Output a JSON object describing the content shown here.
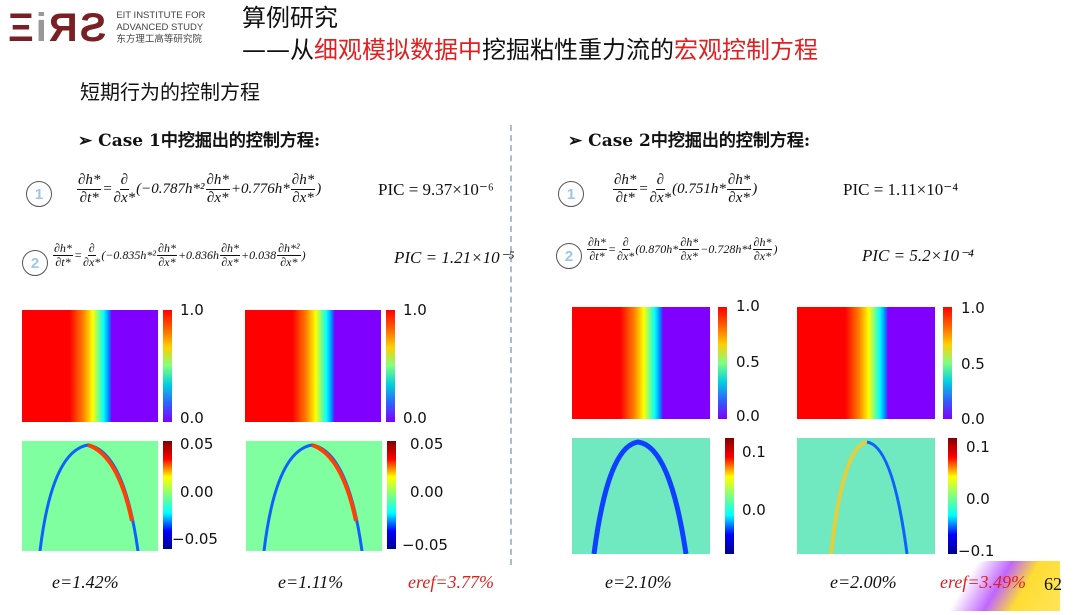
{
  "logo": {
    "mark": "EiAS",
    "line1": "EIT INSTITUTE FOR",
    "line2": "ADVANCED STUDY",
    "line3": "东方理工高等研究院"
  },
  "title": {
    "line1": "算例研究",
    "prefix": "——从",
    "red1": "细观模拟数据中",
    "mid": "挖掘粘性重力流的",
    "red2": "宏观控制方程"
  },
  "subtitle": "短期行为的控制方程",
  "case1": {
    "heading": "➢  Case 1中挖掘出的控制方程:",
    "eq1_num": "1",
    "eq2_num": "2",
    "eq1": [
      {
        "t": "f",
        "n": "∂h*",
        "d": "∂t*"
      },
      {
        "t": "s",
        "v": "="
      },
      {
        "t": "f",
        "n": "∂",
        "d": "∂x*"
      },
      {
        "t": "s",
        "v": "(−0.787h*²"
      },
      {
        "t": "f",
        "n": "∂h*",
        "d": "∂x*"
      },
      {
        "t": "s",
        "v": "+0.776h*"
      },
      {
        "t": "f",
        "n": "∂h*",
        "d": "∂x*"
      },
      {
        "t": "s",
        "v": ")"
      }
    ],
    "eq1_pic": "PIC = 9.37×10⁻⁶",
    "eq2": [
      {
        "t": "f",
        "n": "∂h*",
        "d": "∂t*"
      },
      {
        "t": "s",
        "v": "="
      },
      {
        "t": "f",
        "n": "∂",
        "d": "∂x*"
      },
      {
        "t": "s",
        "v": "(−0.835h*²"
      },
      {
        "t": "f",
        "n": "∂h*",
        "d": "∂x*"
      },
      {
        "t": "s",
        "v": "+0.836h"
      },
      {
        "t": "f",
        "n": "∂h*",
        "d": "∂x*"
      },
      {
        "t": "s",
        "v": "+0.038"
      },
      {
        "t": "f",
        "n": "∂h*²",
        "d": "∂x*"
      },
      {
        "t": "s",
        "v": ")"
      }
    ],
    "eq2_pic": "PIC = 1.21×10⁻⁵",
    "cbar_top": [
      "1.0",
      "0.0"
    ],
    "cbar_bot": [
      "0.05",
      "0.00",
      "−0.05"
    ],
    "err1": "e=1.42%",
    "err2": "e=1.11%",
    "err_ref": "eref=3.77%"
  },
  "case2": {
    "heading": "➢  Case 2中挖掘出的控制方程:",
    "eq1_num": "1",
    "eq2_num": "2",
    "eq1": [
      {
        "t": "f",
        "n": "∂h*",
        "d": "∂t*"
      },
      {
        "t": "s",
        "v": "="
      },
      {
        "t": "f",
        "n": "∂",
        "d": "∂x*"
      },
      {
        "t": "s",
        "v": "(0.751h*"
      },
      {
        "t": "f",
        "n": "∂h*",
        "d": "∂x*"
      },
      {
        "t": "s",
        "v": ")"
      }
    ],
    "eq1_pic": "PIC = 1.11×10⁻⁴",
    "eq2": [
      {
        "t": "f",
        "n": "∂h*",
        "d": "∂t*"
      },
      {
        "t": "s",
        "v": "="
      },
      {
        "t": "f",
        "n": "∂",
        "d": "∂x*"
      },
      {
        "t": "s",
        "v": "(0.870h*"
      },
      {
        "t": "f",
        "n": "∂h*",
        "d": "∂x*"
      },
      {
        "t": "s",
        "v": "−0.728h*⁴"
      },
      {
        "t": "f",
        "n": "∂h*",
        "d": "∂x*"
      },
      {
        "t": "s",
        "v": ")"
      }
    ],
    "eq2_pic": "PIC = 5.2×10⁻⁴",
    "cbar_top": [
      "1.0",
      "0.5",
      "0.0"
    ],
    "cbar_bot1": [
      "0.1",
      "0.0"
    ],
    "cbar_bot2": [
      "0.1",
      "0.0",
      "−0.1"
    ],
    "err1": "e=2.10%",
    "err2": "e=2.00%",
    "err_ref": "eref=3.49%"
  },
  "page_number": "62"
}
